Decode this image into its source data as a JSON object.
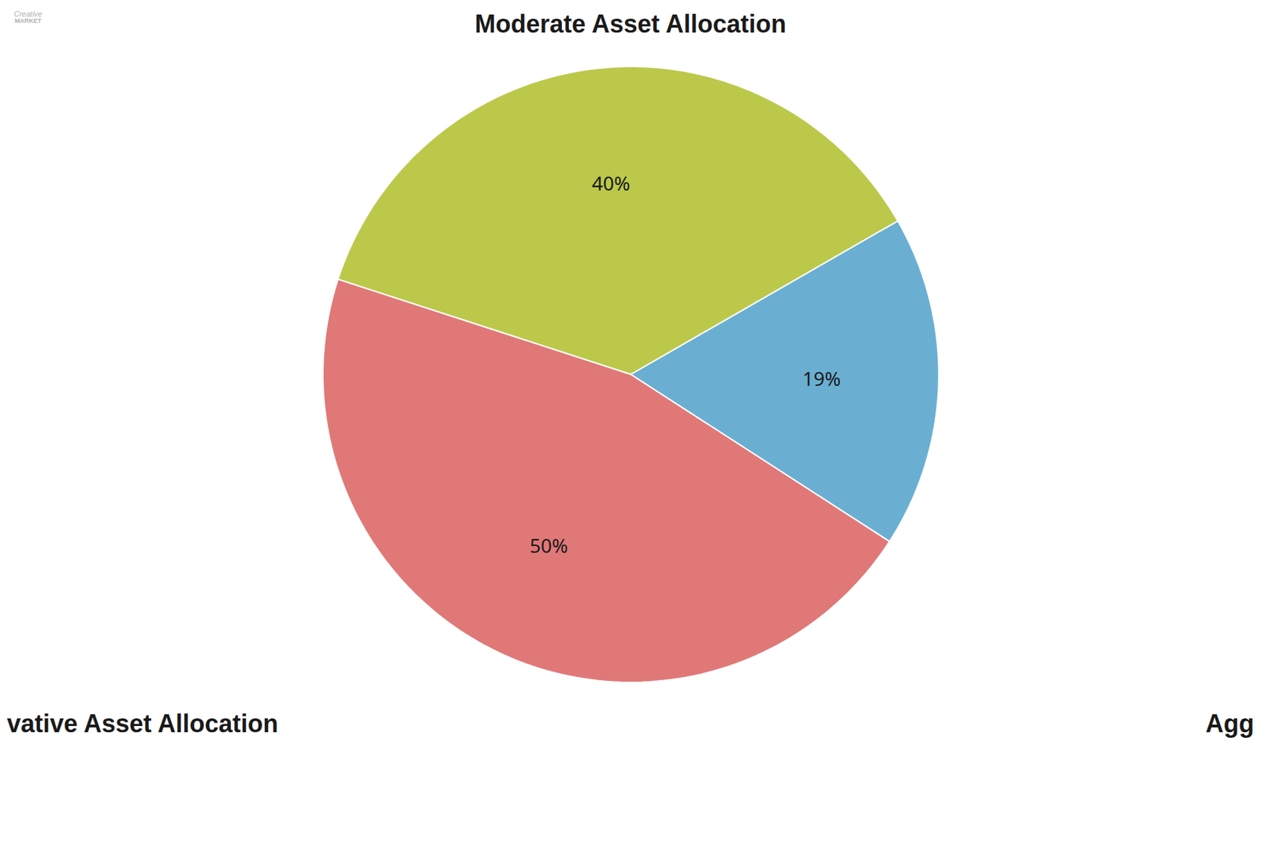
{
  "chart_data": {
    "type": "pie",
    "title": "Moderate Asset Allocation",
    "categories": [
      null,
      null,
      null
    ],
    "values": [
      40,
      19,
      50
    ],
    "value_labels": [
      "40%",
      "19%",
      "50%"
    ],
    "colors": [
      "#bcc84a",
      "#6aafd1",
      "#e07878"
    ],
    "data_labels": true,
    "annotations": [
      "vative Asset Allocation",
      "Agg",
      "Creative",
      "MARKET"
    ]
  }
}
